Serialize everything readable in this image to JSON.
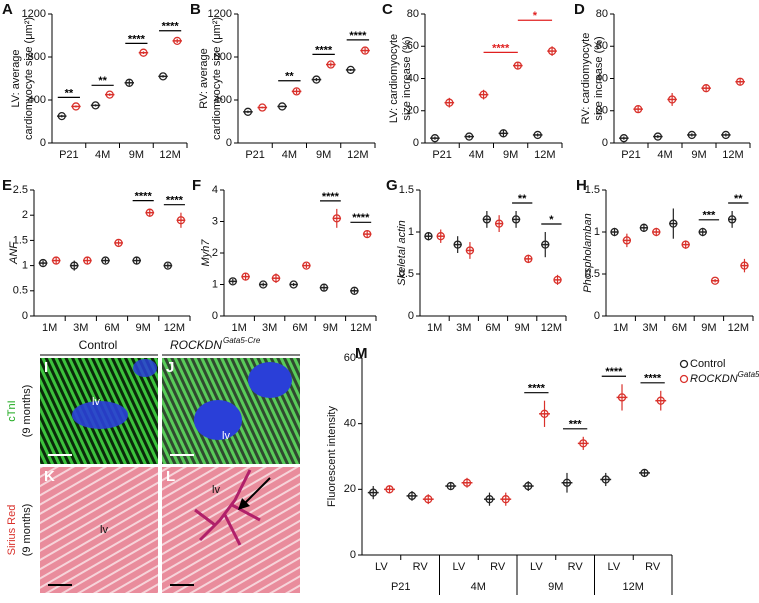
{
  "chart_data": [
    {
      "type": "dotplot",
      "panel": "A",
      "ylabel": [
        "LV: average",
        "cardiomyocyte size (μm²)"
      ],
      "categories": [
        "P21",
        "4M",
        "9M",
        "12M"
      ],
      "ylim": [
        0,
        1200
      ],
      "yticks": [
        0,
        400,
        800,
        1200
      ],
      "series": [
        {
          "color": "#222222",
          "values": [
            250,
            350,
            560,
            620
          ],
          "errors": [
            12,
            10,
            25,
            12
          ]
        },
        {
          "color": "#d9312b",
          "values": [
            340,
            450,
            840,
            950
          ],
          "errors": [
            10,
            12,
            12,
            20
          ]
        }
      ],
      "annotations": [
        {
          "text": "**",
          "at": 0
        },
        {
          "text": "**",
          "at": 1
        },
        {
          "text": "****",
          "at": 2
        },
        {
          "text": "****",
          "at": 3
        }
      ]
    },
    {
      "type": "dotplot",
      "panel": "B",
      "ylabel": [
        "RV: average",
        "cardiomyocyte size (μm²)"
      ],
      "categories": [
        "P21",
        "4M",
        "9M",
        "12M"
      ],
      "ylim": [
        0,
        1200
      ],
      "yticks": [
        0,
        400,
        800,
        1200
      ],
      "series": [
        {
          "color": "#222222",
          "values": [
            290,
            340,
            590,
            680
          ],
          "errors": [
            12,
            8,
            15,
            10
          ]
        },
        {
          "color": "#d9312b",
          "values": [
            330,
            480,
            730,
            860
          ],
          "errors": [
            8,
            25,
            20,
            25
          ]
        }
      ],
      "annotations": [
        {
          "text": "**",
          "at": 1
        },
        {
          "text": "****",
          "at": 2
        },
        {
          "text": "****",
          "at": 3
        }
      ]
    },
    {
      "type": "dotplot",
      "panel": "C",
      "ylabel": [
        "LV: cardiomyocyte",
        "size increase (%)"
      ],
      "categories": [
        "P21",
        "4M",
        "9M",
        "12M"
      ],
      "ylim": [
        0,
        80
      ],
      "yticks": [
        0,
        20,
        40,
        60,
        80
      ],
      "series": [
        {
          "color": "#222222",
          "values": [
            3,
            4,
            6,
            5
          ],
          "errors": [
            1,
            1,
            2,
            1
          ]
        },
        {
          "color": "#d9312b",
          "values": [
            25,
            30,
            48,
            57
          ],
          "errors": [
            3,
            3,
            2,
            3
          ]
        }
      ],
      "annotations": [
        {
          "text": "****",
          "from": 1,
          "to": 2,
          "color": "#e02020"
        },
        {
          "text": "*",
          "from": 2,
          "to": 3,
          "color": "#e02020"
        }
      ]
    },
    {
      "type": "dotplot",
      "panel": "D",
      "ylabel": [
        "RV: cardiomyocyte",
        "size increase (%)"
      ],
      "categories": [
        "P21",
        "4M",
        "9M",
        "12M"
      ],
      "ylim": [
        0,
        80
      ],
      "yticks": [
        0,
        20,
        40,
        60,
        80
      ],
      "series": [
        {
          "color": "#222222",
          "values": [
            3,
            4,
            5,
            5
          ],
          "errors": [
            1,
            1,
            1,
            1
          ]
        },
        {
          "color": "#d9312b",
          "values": [
            21,
            27,
            34,
            38
          ],
          "errors": [
            2,
            4,
            2,
            2
          ]
        }
      ],
      "annotations": []
    },
    {
      "type": "dotplot",
      "panel": "E",
      "ylabel": [
        "ANF"
      ],
      "ylabel_italic": true,
      "categories": [
        "1M",
        "3M",
        "6M",
        "9M",
        "12M"
      ],
      "ylim": [
        0,
        2.5
      ],
      "yticks": [
        0,
        0.5,
        1,
        1.5,
        2,
        2.5
      ],
      "series": [
        {
          "color": "#222222",
          "values": [
            1.05,
            1.0,
            1.1,
            1.1,
            1.0
          ],
          "errors": [
            0.05,
            0.1,
            0.05,
            0.06,
            0.05
          ]
        },
        {
          "color": "#d9312b",
          "values": [
            1.1,
            1.1,
            1.45,
            2.05,
            1.9
          ],
          "errors": [
            0.06,
            0.06,
            0.05,
            0.08,
            0.15
          ]
        }
      ],
      "annotations": [
        {
          "text": "****",
          "at": 3
        },
        {
          "text": "****",
          "at": 4
        }
      ]
    },
    {
      "type": "dotplot",
      "panel": "F",
      "ylabel": [
        "Myh7"
      ],
      "ylabel_italic": true,
      "categories": [
        "1M",
        "3M",
        "6M",
        "9M",
        "12M"
      ],
      "ylim": [
        0,
        4
      ],
      "yticks": [
        0,
        1,
        2,
        3,
        4
      ],
      "series": [
        {
          "color": "#222222",
          "values": [
            1.1,
            1.0,
            1.0,
            0.9,
            0.8
          ],
          "errors": [
            0.08,
            0.06,
            0.05,
            0.12,
            0.08
          ]
        },
        {
          "color": "#d9312b",
          "values": [
            1.25,
            1.2,
            1.6,
            3.1,
            2.6
          ],
          "errors": [
            0.12,
            0.15,
            0.08,
            0.3,
            0.12
          ]
        }
      ],
      "annotations": [
        {
          "text": "****",
          "at": 3
        },
        {
          "text": "****",
          "at": 4
        }
      ]
    },
    {
      "type": "dotplot",
      "panel": "G",
      "ylabel": [
        "Skeletal actin"
      ],
      "ylabel_italic": true,
      "categories": [
        "1M",
        "3M",
        "6M",
        "9M",
        "12M"
      ],
      "ylim": [
        0,
        1.5
      ],
      "yticks": [
        0,
        0.5,
        1,
        1.5
      ],
      "series": [
        {
          "color": "#222222",
          "values": [
            0.95,
            0.85,
            1.15,
            1.15,
            0.85
          ],
          "errors": [
            0.05,
            0.1,
            0.1,
            0.1,
            0.15
          ]
        },
        {
          "color": "#d9312b",
          "values": [
            0.95,
            0.78,
            1.1,
            0.68,
            0.43
          ],
          "errors": [
            0.08,
            0.1,
            0.1,
            0.05,
            0.06
          ]
        }
      ],
      "annotations": [
        {
          "text": "**",
          "at": 3
        },
        {
          "text": "*",
          "at": 4
        }
      ]
    },
    {
      "type": "dotplot",
      "panel": "H",
      "ylabel": [
        "Phospholamban"
      ],
      "ylabel_italic": true,
      "categories": [
        "1M",
        "3M",
        "6M",
        "9M",
        "12M"
      ],
      "ylim": [
        0,
        1.5
      ],
      "yticks": [
        0,
        0.5,
        1,
        1.5
      ],
      "series": [
        {
          "color": "#222222",
          "values": [
            1.0,
            1.05,
            1.1,
            1.0,
            1.15
          ],
          "errors": [
            0.05,
            0.05,
            0.18,
            0.05,
            0.1
          ]
        },
        {
          "color": "#d9312b",
          "values": [
            0.9,
            1.0,
            0.85,
            0.42,
            0.6
          ],
          "errors": [
            0.08,
            0.05,
            0.05,
            0.02,
            0.08
          ]
        }
      ],
      "annotations": [
        {
          "text": "***",
          "at": 3
        },
        {
          "text": "**",
          "at": 4
        }
      ]
    },
    {
      "type": "dotplot",
      "panel": "M",
      "ylabel": [
        "Fluorescent intensity"
      ],
      "categories": [
        "LV",
        "RV",
        "LV",
        "RV",
        "LV",
        "RV",
        "LV",
        "RV"
      ],
      "groups": [
        "P21",
        "4M",
        "9M",
        "12M"
      ],
      "ylim": [
        0,
        60
      ],
      "yticks": [
        0,
        20,
        40,
        60
      ],
      "series": [
        {
          "name": "Control",
          "color": "#222222",
          "values": [
            19,
            18,
            21,
            17,
            21,
            22,
            23,
            25
          ],
          "errors": [
            2,
            1.5,
            1,
            2,
            1.5,
            3,
            2,
            1
          ]
        },
        {
          "name": "ROCKDN",
          "name_sup": "Gata5-Cre",
          "color": "#d9312b",
          "values": [
            20,
            17,
            22,
            17,
            43,
            34,
            48,
            47
          ],
          "errors": [
            1,
            1.5,
            1.5,
            2,
            4,
            2,
            4,
            3
          ]
        }
      ],
      "annotations": [
        {
          "text": "****",
          "at": 4
        },
        {
          "text": "***",
          "at": 5
        },
        {
          "text": "****",
          "at": 6
        },
        {
          "text": "****",
          "at": 7
        }
      ]
    }
  ],
  "figure_labels": {
    "control": "Control",
    "mutant": "ROCKDN",
    "mutant_sup": "Gata5-Cre",
    "row1_stain": "cTnI",
    "row1_age": "(9 months)",
    "row2_stain": "Sirius Red",
    "row2_age": "(9 months)",
    "panels": [
      "I",
      "J",
      "K",
      "L"
    ],
    "lv": [
      "lv",
      "lv",
      "lv",
      "lv"
    ]
  }
}
